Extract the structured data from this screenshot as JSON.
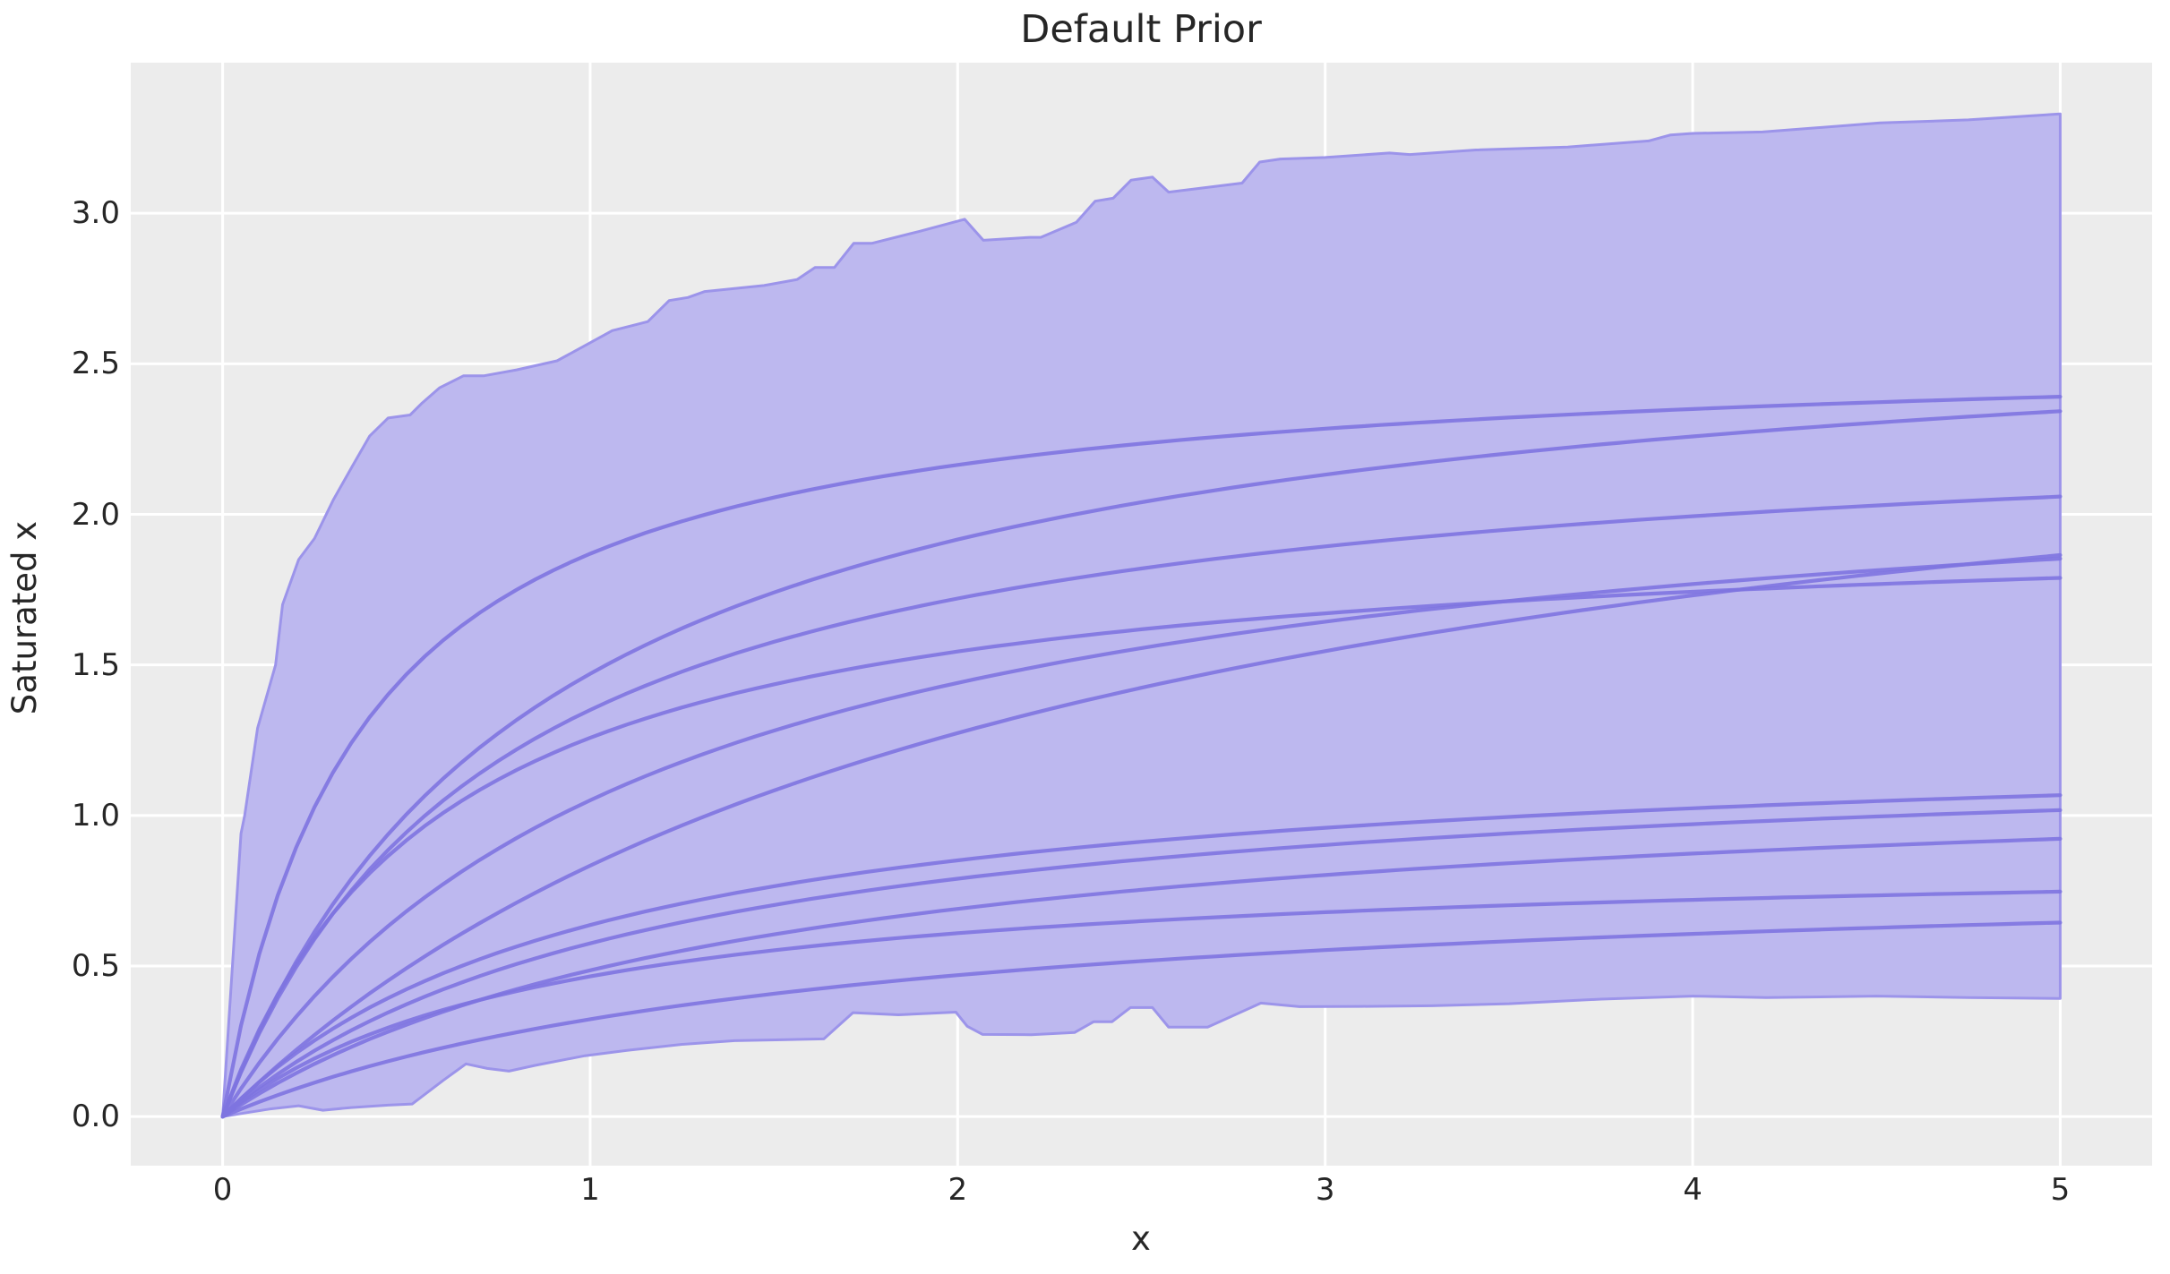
{
  "chart_data": {
    "type": "area+line",
    "title": "Default Prior",
    "xlabel": "x",
    "ylabel": "Saturated x",
    "xlim": [
      -0.25,
      5.25
    ],
    "ylim": [
      -0.163,
      3.5
    ],
    "grid": true,
    "legend": "none",
    "xticks": [
      {
        "v": 0,
        "label": "0"
      },
      {
        "v": 1,
        "label": "1"
      },
      {
        "v": 2,
        "label": "2"
      },
      {
        "v": 3,
        "label": "3"
      },
      {
        "v": 4,
        "label": "4"
      },
      {
        "v": 5,
        "label": "5"
      }
    ],
    "yticks": [
      {
        "v": 0.0,
        "label": "0.0"
      },
      {
        "v": 0.5,
        "label": "0.5"
      },
      {
        "v": 1.0,
        "label": "1.0"
      },
      {
        "v": 1.5,
        "label": "1.5"
      },
      {
        "v": 2.0,
        "label": "2.0"
      },
      {
        "v": 2.5,
        "label": "2.5"
      },
      {
        "v": 3.0,
        "label": "3.0"
      }
    ],
    "band": {
      "description": "prior HDI band, jagged piecewise-linear envelope",
      "top": [
        [
          0,
          0
        ],
        [
          0.05,
          0.94
        ],
        [
          0.06,
          1.0
        ],
        [
          0.095,
          1.29
        ],
        [
          0.144,
          1.5
        ],
        [
          0.163,
          1.7
        ],
        [
          0.207,
          1.85
        ],
        [
          0.25,
          1.92
        ],
        [
          0.302,
          2.05
        ],
        [
          0.353,
          2.16
        ],
        [
          0.4,
          2.26
        ],
        [
          0.45,
          2.32
        ],
        [
          0.51,
          2.33
        ],
        [
          0.543,
          2.37
        ],
        [
          0.59,
          2.42
        ],
        [
          0.655,
          2.46
        ],
        [
          0.71,
          2.46
        ],
        [
          0.8,
          2.48
        ],
        [
          0.91,
          2.51
        ],
        [
          1.0,
          2.57
        ],
        [
          1.06,
          2.61
        ],
        [
          1.125,
          2.63
        ],
        [
          1.157,
          2.64
        ],
        [
          1.215,
          2.71
        ],
        [
          1.266,
          2.72
        ],
        [
          1.312,
          2.74
        ],
        [
          1.393,
          2.75
        ],
        [
          1.473,
          2.76
        ],
        [
          1.563,
          2.78
        ],
        [
          1.612,
          2.82
        ],
        [
          1.665,
          2.82
        ],
        [
          1.717,
          2.9
        ],
        [
          1.766,
          2.9
        ],
        [
          1.897,
          2.94
        ],
        [
          2.019,
          2.98
        ],
        [
          2.07,
          2.91
        ],
        [
          2.197,
          2.92
        ],
        [
          2.226,
          2.92
        ],
        [
          2.323,
          2.97
        ],
        [
          2.374,
          3.04
        ],
        [
          2.423,
          3.05
        ],
        [
          2.472,
          3.11
        ],
        [
          2.53,
          3.12
        ],
        [
          2.574,
          3.07
        ],
        [
          2.774,
          3.1
        ],
        [
          2.822,
          3.17
        ],
        [
          2.878,
          3.18
        ],
        [
          3.0,
          3.185
        ],
        [
          3.175,
          3.2
        ],
        [
          3.23,
          3.195
        ],
        [
          3.41,
          3.21
        ],
        [
          3.66,
          3.22
        ],
        [
          3.88,
          3.24
        ],
        [
          3.94,
          3.26
        ],
        [
          4.0,
          3.265
        ],
        [
          4.19,
          3.27
        ],
        [
          4.51,
          3.3
        ],
        [
          4.75,
          3.31
        ],
        [
          5.0,
          3.33
        ]
      ],
      "bottom": [
        [
          0,
          0
        ],
        [
          0.05,
          0.01
        ],
        [
          0.127,
          0.025
        ],
        [
          0.207,
          0.036
        ],
        [
          0.273,
          0.021
        ],
        [
          0.35,
          0.03
        ],
        [
          0.45,
          0.038
        ],
        [
          0.516,
          0.042
        ],
        [
          0.6,
          0.12
        ],
        [
          0.662,
          0.175
        ],
        [
          0.72,
          0.16
        ],
        [
          0.779,
          0.151
        ],
        [
          0.85,
          0.17
        ],
        [
          0.986,
          0.202
        ],
        [
          1.1,
          0.22
        ],
        [
          1.25,
          0.24
        ],
        [
          1.393,
          0.252
        ],
        [
          1.52,
          0.255
        ],
        [
          1.636,
          0.258
        ],
        [
          1.715,
          0.345
        ],
        [
          1.839,
          0.338
        ],
        [
          1.995,
          0.347
        ],
        [
          2.026,
          0.3
        ],
        [
          2.068,
          0.273
        ],
        [
          2.2,
          0.272
        ],
        [
          2.318,
          0.279
        ],
        [
          2.37,
          0.315
        ],
        [
          2.42,
          0.315
        ],
        [
          2.47,
          0.362
        ],
        [
          2.53,
          0.362
        ],
        [
          2.574,
          0.297
        ],
        [
          2.68,
          0.297
        ],
        [
          2.825,
          0.377
        ],
        [
          2.93,
          0.365
        ],
        [
          3.1,
          0.366
        ],
        [
          3.29,
          0.368
        ],
        [
          3.5,
          0.375
        ],
        [
          3.75,
          0.39
        ],
        [
          4.0,
          0.4
        ],
        [
          4.2,
          0.395
        ],
        [
          4.5,
          0.4
        ],
        [
          4.75,
          0.395
        ],
        [
          5.0,
          0.392
        ]
      ]
    },
    "curve_model": "y = A*x/(x+k) (saturating prior samples through origin)",
    "curves": [
      {
        "A": 2.57,
        "k": 0.375,
        "y_at_x5": 2.39
      },
      {
        "A": 2.75,
        "k": 0.87,
        "y_at_x5": 2.34
      },
      {
        "A": 2.37,
        "k": 0.755,
        "y_at_x5": 2.06
      },
      {
        "A": 2.7,
        "k": 2.24,
        "y_at_x5": 1.86
      },
      {
        "A": 2.29,
        "k": 1.18,
        "y_at_x5": 1.85
      },
      {
        "A": 2.0,
        "k": 0.59,
        "y_at_x5": 1.79
      },
      {
        "A": 1.285,
        "k": 1.02,
        "y_at_x5": 1.07
      },
      {
        "A": 1.26,
        "k": 1.19,
        "y_at_x5": 1.02
      },
      {
        "A": 1.19,
        "k": 1.45,
        "y_at_x5": 0.92
      },
      {
        "A": 0.88,
        "k": 0.89,
        "y_at_x5": 0.75
      },
      {
        "A": 0.857,
        "k": 1.65,
        "y_at_x5": 0.64
      }
    ],
    "colors": {
      "axes_background": "#ececec",
      "grid_line": "#ffffff",
      "band_fill": "#bdb8ef",
      "band_edge": "#9c94ea",
      "curve_line": "#7e74e0",
      "text": "#262626",
      "figure_background": "#ffffff"
    }
  }
}
